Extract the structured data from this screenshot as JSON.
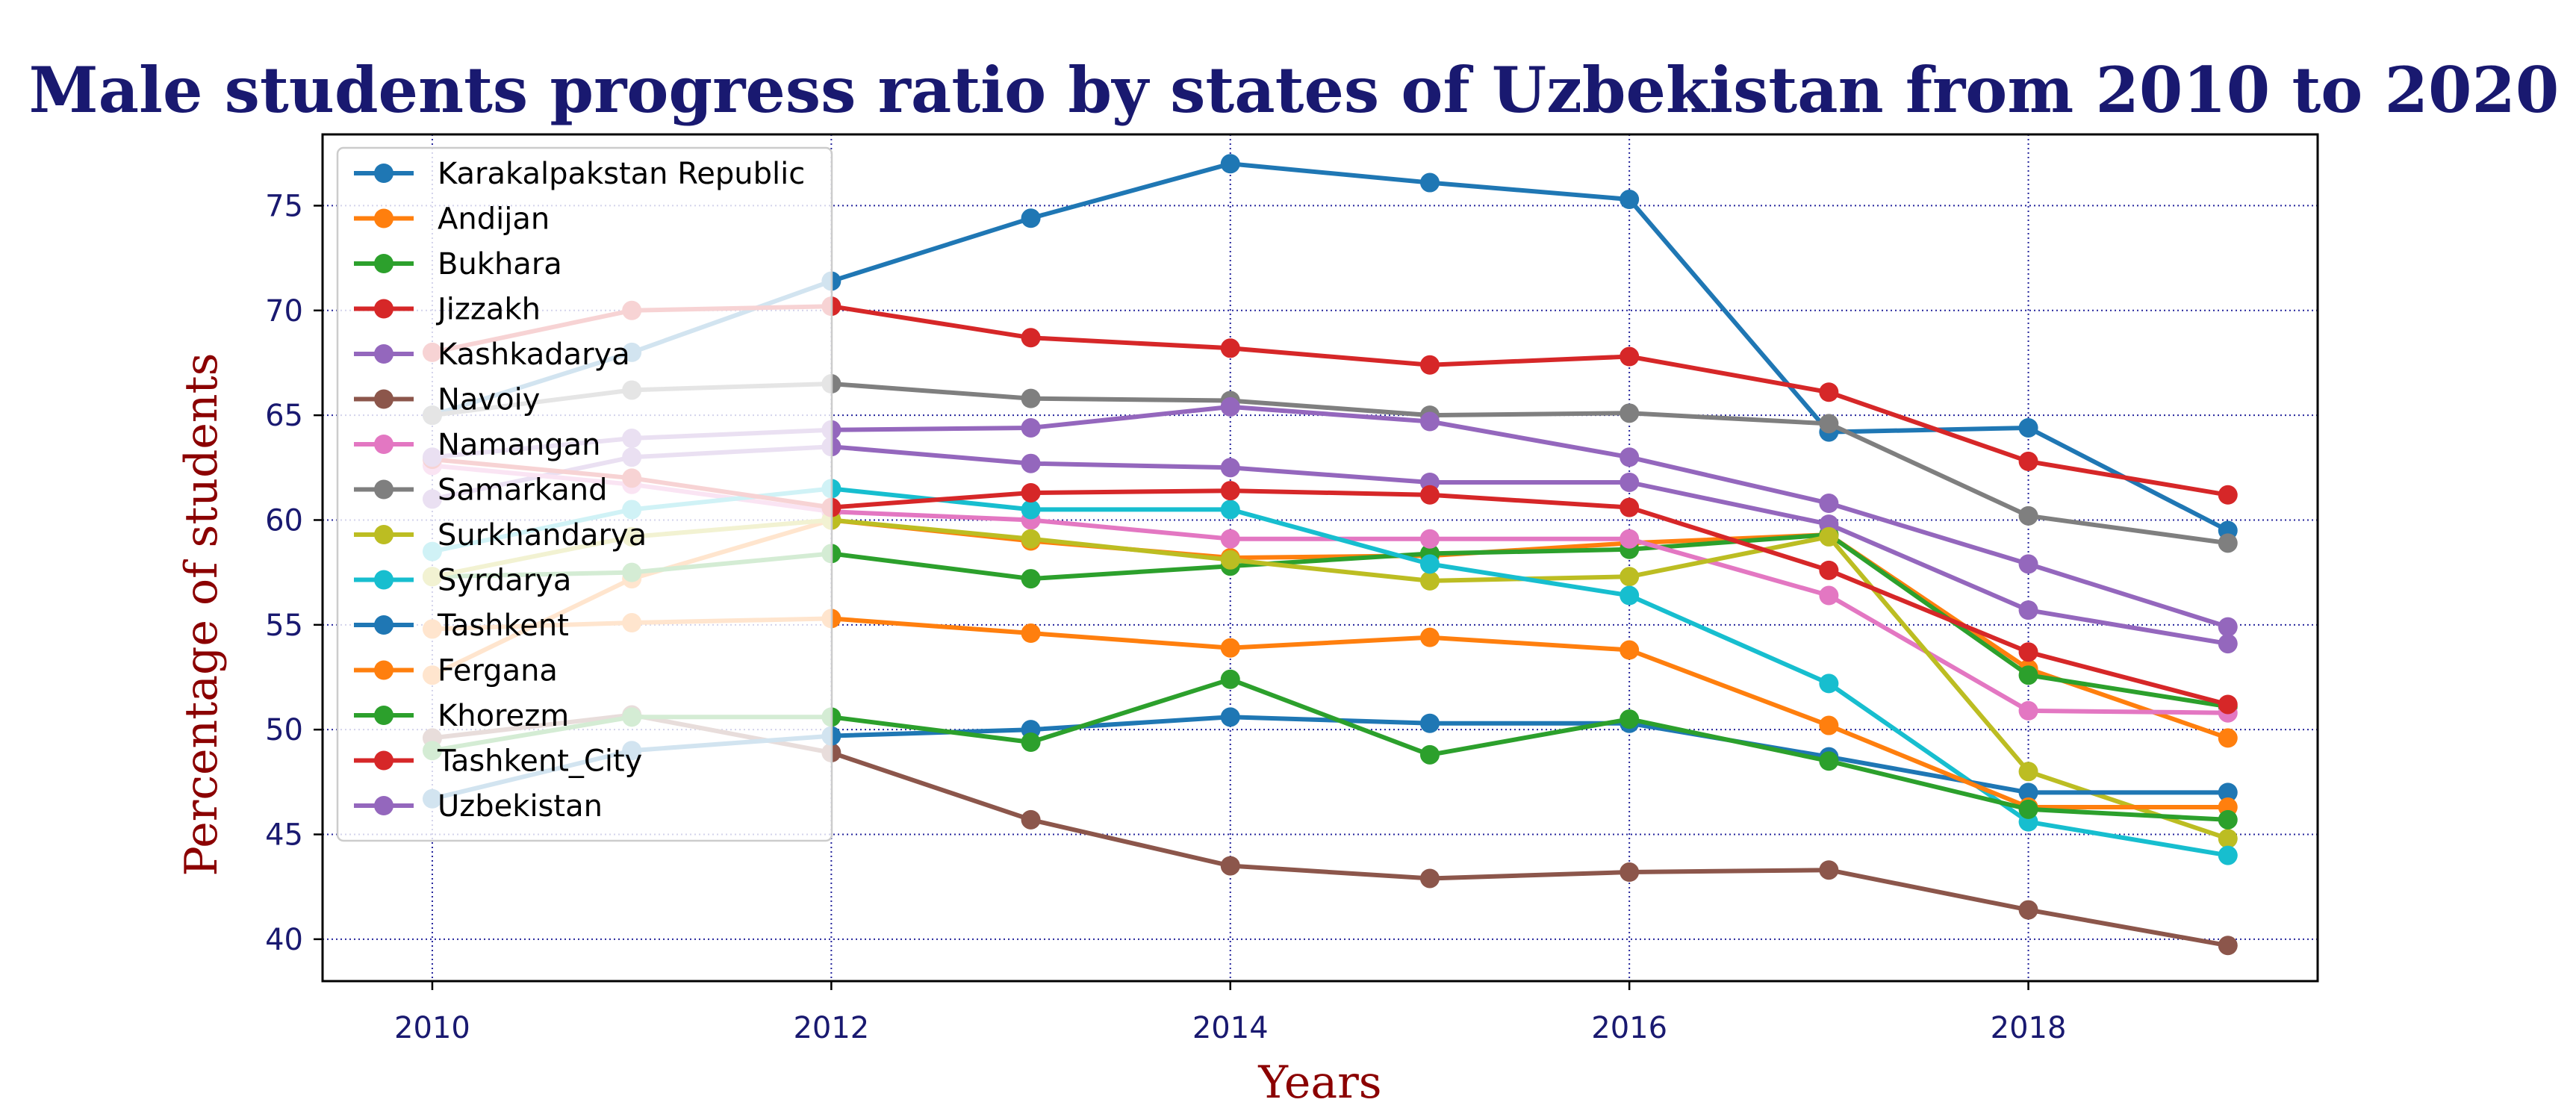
{
  "chart_data": {
    "type": "line",
    "title": "Male students progress ratio by states of Uzbekistan from 2010 to 2020",
    "xlabel": "Years",
    "ylabel": "Percentage of students",
    "x": [
      2010,
      2011,
      2012,
      2013,
      2014,
      2015,
      2016,
      2017,
      2018,
      2019
    ],
    "xlim": [
      2009.45,
      2019.45
    ],
    "ylim": [
      38.0,
      78.4
    ],
    "xticks": [
      2010,
      2012,
      2014,
      2016,
      2018
    ],
    "yticks": [
      40,
      45,
      50,
      55,
      60,
      65,
      70,
      75
    ],
    "grid": true,
    "legend_position": "top-left",
    "series": [
      {
        "name": "Karakalpakstan Republic",
        "color": "#1f77b4",
        "values": [
          65.0,
          68.0,
          71.4,
          74.4,
          77.0,
          76.1,
          75.3,
          64.2,
          64.4,
          59.5
        ]
      },
      {
        "name": "Andijan",
        "color": "#ff7f0e",
        "values": [
          52.6,
          57.2,
          60.0,
          59.0,
          58.2,
          58.3,
          58.9,
          59.3,
          52.9,
          49.6
        ]
      },
      {
        "name": "Bukhara",
        "color": "#2ca02c",
        "values": [
          57.3,
          57.5,
          58.4,
          57.2,
          57.8,
          58.4,
          58.6,
          59.3,
          52.6,
          51.1
        ]
      },
      {
        "name": "Jizzakh",
        "color": "#d62728",
        "values": [
          68.0,
          70.0,
          70.2,
          68.7,
          68.2,
          67.4,
          67.8,
          66.1,
          62.8,
          61.2
        ]
      },
      {
        "name": "Kashkadarya",
        "color": "#9467bd",
        "values": [
          61.0,
          63.0,
          63.5,
          62.7,
          62.5,
          61.8,
          61.8,
          59.8,
          55.7,
          54.1
        ]
      },
      {
        "name": "Navoiy",
        "color": "#8c564b",
        "values": [
          49.6,
          50.7,
          48.9,
          45.7,
          43.5,
          42.9,
          43.2,
          43.3,
          41.4,
          39.7
        ]
      },
      {
        "name": "Namangan",
        "color": "#e377c2",
        "values": [
          62.6,
          61.7,
          60.4,
          60.0,
          59.1,
          59.1,
          59.1,
          56.4,
          50.9,
          50.8
        ]
      },
      {
        "name": "Samarkand",
        "color": "#7f7f7f",
        "values": [
          65.0,
          66.2,
          66.5,
          65.8,
          65.7,
          65.0,
          65.1,
          64.6,
          60.2,
          58.9
        ]
      },
      {
        "name": "Surkhandarya",
        "color": "#bcbd22",
        "values": [
          57.3,
          59.2,
          60.0,
          59.1,
          58.1,
          57.1,
          57.3,
          59.2,
          48.0,
          44.8
        ]
      },
      {
        "name": "Syrdarya",
        "color": "#17becf",
        "values": [
          58.5,
          60.5,
          61.5,
          60.5,
          60.5,
          57.9,
          56.4,
          52.2,
          45.6,
          44.0
        ]
      },
      {
        "name": "Tashkent",
        "color": "#1f77b4",
        "values": [
          46.7,
          49.0,
          49.7,
          50.0,
          50.6,
          50.3,
          50.3,
          48.7,
          47.0,
          47.0
        ]
      },
      {
        "name": "Fergana",
        "color": "#ff7f0e",
        "values": [
          54.8,
          55.1,
          55.3,
          54.6,
          53.9,
          54.4,
          53.8,
          50.2,
          46.3,
          46.3
        ]
      },
      {
        "name": "Khorezm",
        "color": "#2ca02c",
        "values": [
          49.0,
          50.6,
          50.6,
          49.4,
          52.4,
          48.8,
          50.5,
          48.5,
          46.2,
          45.7
        ]
      },
      {
        "name": "Tashkent_City",
        "color": "#d62728",
        "values": [
          62.9,
          62.0,
          60.6,
          61.3,
          61.4,
          61.2,
          60.6,
          57.6,
          53.7,
          51.2
        ]
      },
      {
        "name": "Uzbekistan",
        "color": "#9467bd",
        "values": [
          63.0,
          63.9,
          64.3,
          64.4,
          65.4,
          64.7,
          63.0,
          60.8,
          57.9,
          54.9
        ]
      }
    ]
  }
}
